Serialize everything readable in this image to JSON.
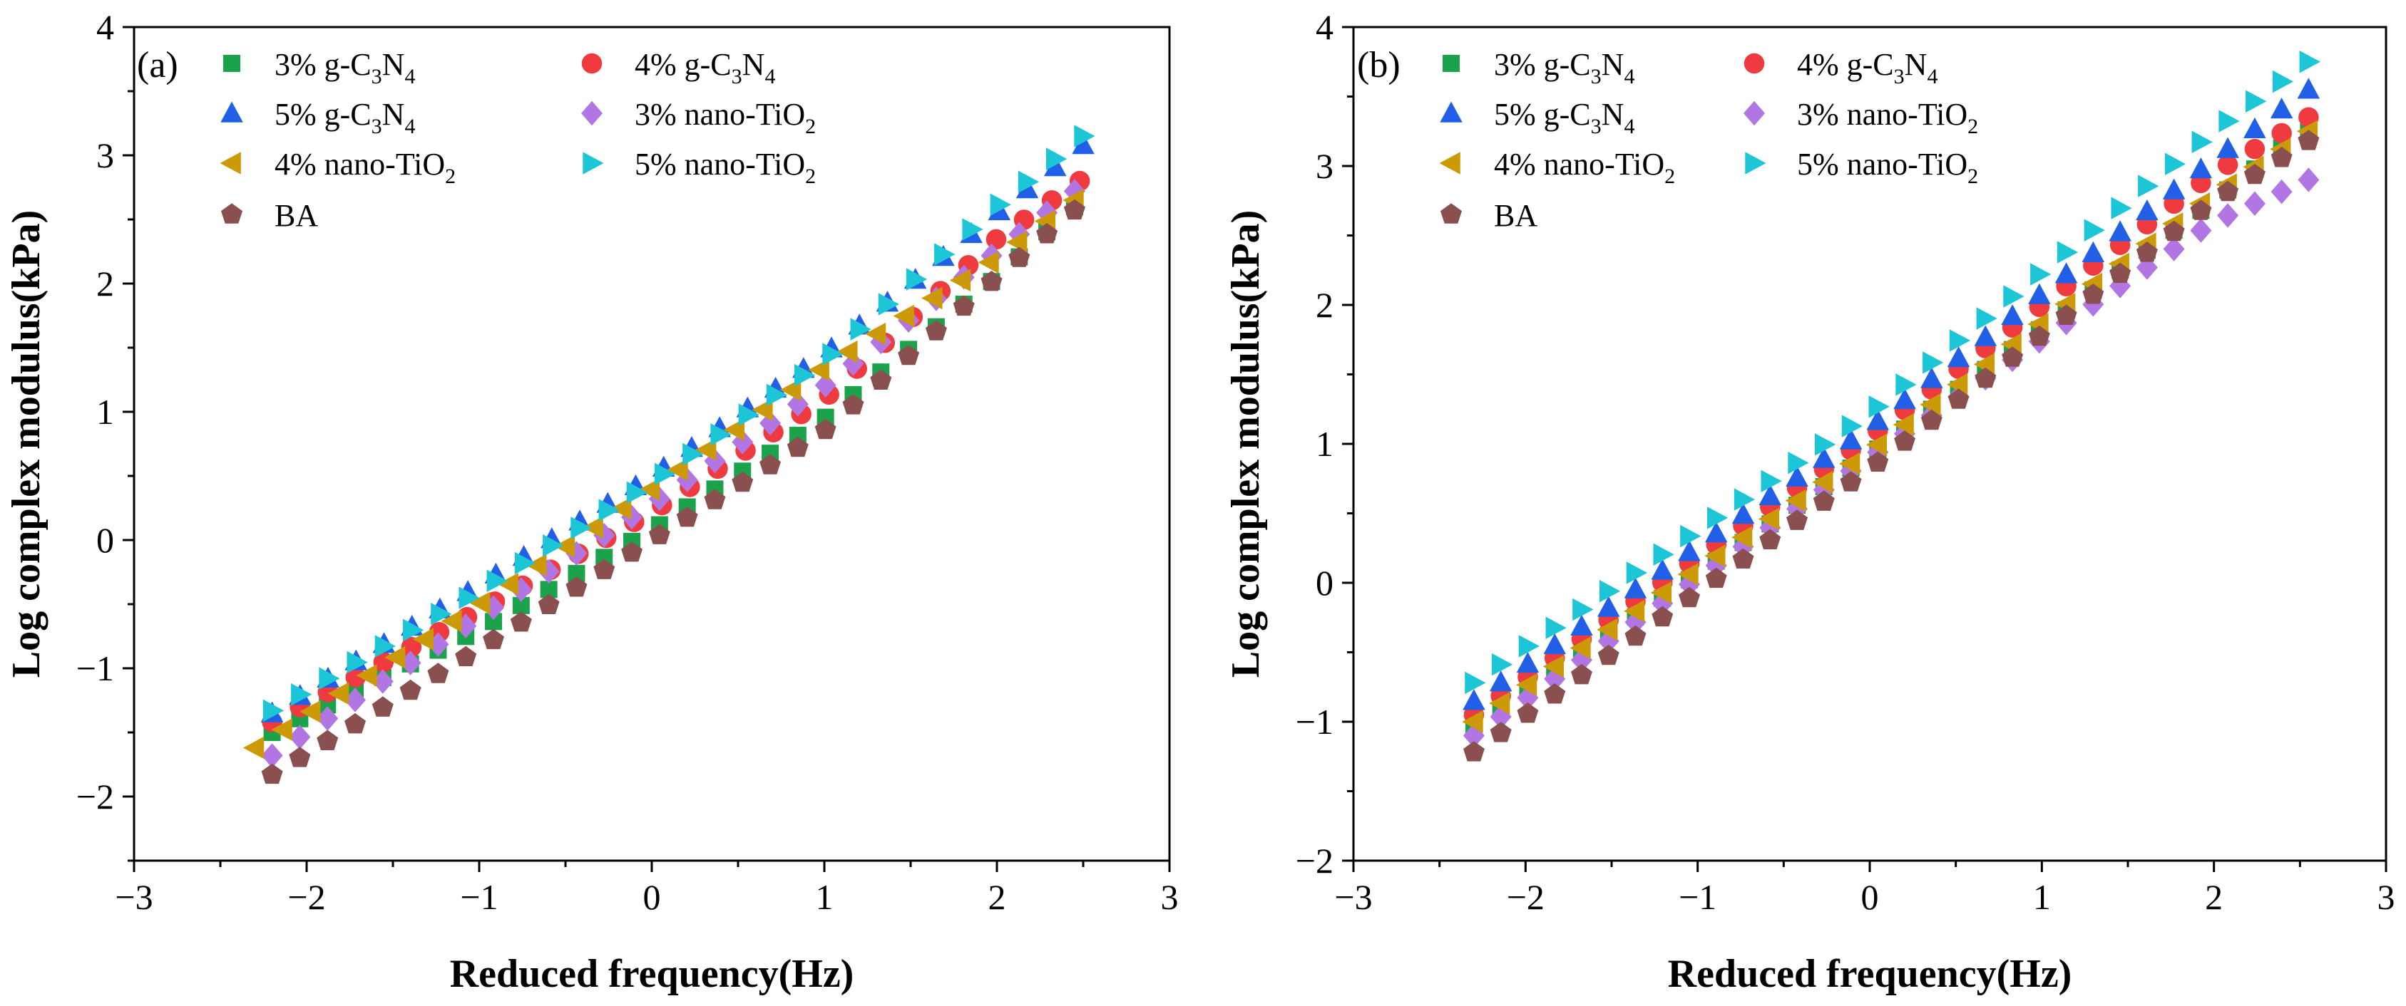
{
  "figure_id": "complex-modulus-master-curves",
  "colors": {
    "g3": "#1aa34a",
    "g4": "#ef3b3f",
    "g5": "#2160e6",
    "t3": "#b176e4",
    "t4": "#cc9a06",
    "t5": "#1cc6d6",
    "ba": "#8a5050"
  },
  "legend": [
    {
      "key": "g3",
      "pct": "3%",
      "base": "g-C",
      "sub1": "3",
      "mid": "N",
      "sub2": "4",
      "tail": "",
      "marker": "square"
    },
    {
      "key": "g4",
      "pct": "4%",
      "base": "g-C",
      "sub1": "3",
      "mid": "N",
      "sub2": "4",
      "tail": "",
      "marker": "circle"
    },
    {
      "key": "g5",
      "pct": "5%",
      "base": "g-C",
      "sub1": "3",
      "mid": "N",
      "sub2": "4",
      "tail": "",
      "marker": "triangle-up"
    },
    {
      "key": "t3",
      "pct": "3%",
      "base": "nano-TiO",
      "sub1": "2",
      "mid": "",
      "sub2": "",
      "tail": "",
      "marker": "diamond"
    },
    {
      "key": "t4",
      "pct": "4%",
      "base": "nano-TiO",
      "sub1": "2",
      "mid": "",
      "sub2": "",
      "tail": "",
      "marker": "triangle-left"
    },
    {
      "key": "t5",
      "pct": "5%",
      "base": "nano-TiO",
      "sub1": "2",
      "mid": "",
      "sub2": "",
      "tail": "",
      "marker": "triangle-right"
    },
    {
      "key": "ba",
      "pct": "",
      "base": "BA",
      "sub1": "",
      "mid": "",
      "sub2": "",
      "tail": "",
      "marker": "pentagon"
    }
  ],
  "chart_data": [
    {
      "panel": "(a)",
      "type": "scatter",
      "xlabel": "Reduced frequency(Hz)",
      "ylabel": "Log complex modulus(kPa)",
      "xlim": [
        -3,
        3
      ],
      "ylim": [
        -2.5,
        4
      ],
      "xticks": [
        -3,
        -2,
        -1,
        0,
        1,
        2,
        3
      ],
      "yticks": [
        -2,
        -1,
        0,
        1,
        2,
        3,
        4
      ],
      "xtick_labels": [
        "−3",
        "−2",
        "−1",
        "0",
        "1",
        "2",
        "3"
      ],
      "ytick_labels": [
        "−2",
        "−1",
        "0",
        "1",
        "2",
        "3",
        "4"
      ],
      "series": [
        {
          "name": "3% g-C3N4",
          "key": "g3",
          "x_start": -2.2,
          "x_end": 2.45,
          "n": 30,
          "y": [
            [
              -2.2,
              -1.5
            ],
            [
              -1.0,
              -0.7
            ],
            [
              0,
              0.08
            ],
            [
              1.0,
              0.95
            ],
            [
              2.0,
              2.05
            ],
            [
              2.45,
              2.6
            ]
          ]
        },
        {
          "name": "4% g-C3N4",
          "key": "g4",
          "x_start": -2.2,
          "x_end": 2.48,
          "n": 30,
          "y": [
            [
              -2.2,
              -1.42
            ],
            [
              -1.0,
              -0.55
            ],
            [
              0,
              0.22
            ],
            [
              1.0,
              1.1
            ],
            [
              2.0,
              2.35
            ],
            [
              2.48,
              2.8
            ]
          ]
        },
        {
          "name": "5% g-C3N4",
          "key": "g5",
          "x_start": -2.2,
          "x_end": 2.5,
          "n": 30,
          "y": [
            [
              -2.2,
              -1.35
            ],
            [
              -1.0,
              -0.35
            ],
            [
              0,
              0.5
            ],
            [
              1.0,
              1.45
            ],
            [
              2.0,
              2.55
            ],
            [
              2.5,
              3.08
            ]
          ]
        },
        {
          "name": "3% nano-TiO2",
          "key": "t3",
          "x_start": -2.2,
          "x_end": 2.45,
          "n": 30,
          "y": [
            [
              -2.2,
              -1.68
            ],
            [
              -1.0,
              -0.6
            ],
            [
              0,
              0.28
            ],
            [
              1.0,
              1.2
            ],
            [
              2.0,
              2.25
            ],
            [
              2.45,
              2.72
            ]
          ]
        },
        {
          "name": "4% nano-TiO2",
          "key": "t4",
          "x_start": -2.3,
          "x_end": 2.45,
          "n": 30,
          "y": [
            [
              -2.3,
              -1.62
            ],
            [
              -1.0,
              -0.5
            ],
            [
              0,
              0.4
            ],
            [
              1.0,
              1.35
            ],
            [
              2.0,
              2.2
            ],
            [
              2.45,
              2.65
            ]
          ]
        },
        {
          "name": "5% nano-TiO2",
          "key": "t5",
          "x_start": -2.2,
          "x_end": 2.5,
          "n": 30,
          "y": [
            [
              -2.2,
              -1.33
            ],
            [
              -1.0,
              -0.4
            ],
            [
              0,
              0.45
            ],
            [
              1.0,
              1.4
            ],
            [
              2.0,
              2.6
            ],
            [
              2.5,
              3.15
            ]
          ]
        },
        {
          "name": "BA",
          "key": "ba",
          "x_start": -2.2,
          "x_end": 2.45,
          "n": 30,
          "y": [
            [
              -2.2,
              -1.83
            ],
            [
              -1.0,
              -0.85
            ],
            [
              0,
              0.0
            ],
            [
              1.0,
              0.85
            ],
            [
              2.0,
              2.05
            ],
            [
              2.45,
              2.57
            ]
          ]
        }
      ]
    },
    {
      "panel": "(b)",
      "type": "scatter",
      "xlabel": "Reduced frequency(Hz)",
      "ylabel": "Log complex modulus(kPa)",
      "xlim": [
        -3,
        3
      ],
      "ylim": [
        -2,
        4
      ],
      "xticks": [
        -3,
        -2,
        -1,
        0,
        1,
        2,
        3
      ],
      "yticks": [
        -2,
        -1,
        0,
        1,
        2,
        3,
        4
      ],
      "xtick_labels": [
        "−3",
        "−2",
        "−1",
        "0",
        "1",
        "2",
        "3"
      ],
      "ytick_labels": [
        "−2",
        "−1",
        "0",
        "1",
        "2",
        "3",
        "4"
      ],
      "series": [
        {
          "name": "3% g-C3N4",
          "key": "g3",
          "x_start": -2.3,
          "x_end": 2.55,
          "n": 32,
          "y": [
            [
              -2.3,
              -1.05
            ],
            [
              0,
              0.92
            ],
            [
              2.0,
              2.75
            ],
            [
              2.55,
              3.28
            ]
          ]
        },
        {
          "name": "4% g-C3N4",
          "key": "g4",
          "x_start": -2.3,
          "x_end": 2.55,
          "n": 32,
          "y": [
            [
              -2.3,
              -0.95
            ],
            [
              0,
              1.05
            ],
            [
              2.0,
              2.95
            ],
            [
              2.55,
              3.35
            ]
          ]
        },
        {
          "name": "5% g-C3N4",
          "key": "g5",
          "x_start": -2.3,
          "x_end": 2.55,
          "n": 32,
          "y": [
            [
              -2.3,
              -0.85
            ],
            [
              0,
              1.12
            ],
            [
              2.0,
              3.05
            ],
            [
              2.55,
              3.55
            ]
          ]
        },
        {
          "name": "3% nano-TiO2",
          "key": "t3",
          "x_start": -2.3,
          "x_end": 2.55,
          "n": 32,
          "y": [
            [
              -2.3,
              -1.1
            ],
            [
              0,
              0.9
            ],
            [
              2.0,
              2.6
            ],
            [
              2.55,
              2.9
            ]
          ]
        },
        {
          "name": "4% nano-TiO2",
          "key": "t4",
          "x_start": -2.3,
          "x_end": 2.55,
          "n": 32,
          "y": [
            [
              -2.3,
              -1.0
            ],
            [
              0,
              0.95
            ],
            [
              2.0,
              2.8
            ],
            [
              2.55,
              3.25
            ]
          ]
        },
        {
          "name": "5% nano-TiO2",
          "key": "t5",
          "x_start": -2.3,
          "x_end": 2.55,
          "n": 32,
          "y": [
            [
              -2.3,
              -0.72
            ],
            [
              0,
              1.22
            ],
            [
              2.0,
              3.25
            ],
            [
              2.55,
              3.75
            ]
          ]
        },
        {
          "name": "BA",
          "key": "ba",
          "x_start": -2.3,
          "x_end": 2.55,
          "n": 32,
          "y": [
            [
              -2.3,
              -1.22
            ],
            [
              0,
              0.82
            ],
            [
              2.0,
              2.75
            ],
            [
              2.55,
              3.18
            ]
          ]
        }
      ]
    }
  ]
}
